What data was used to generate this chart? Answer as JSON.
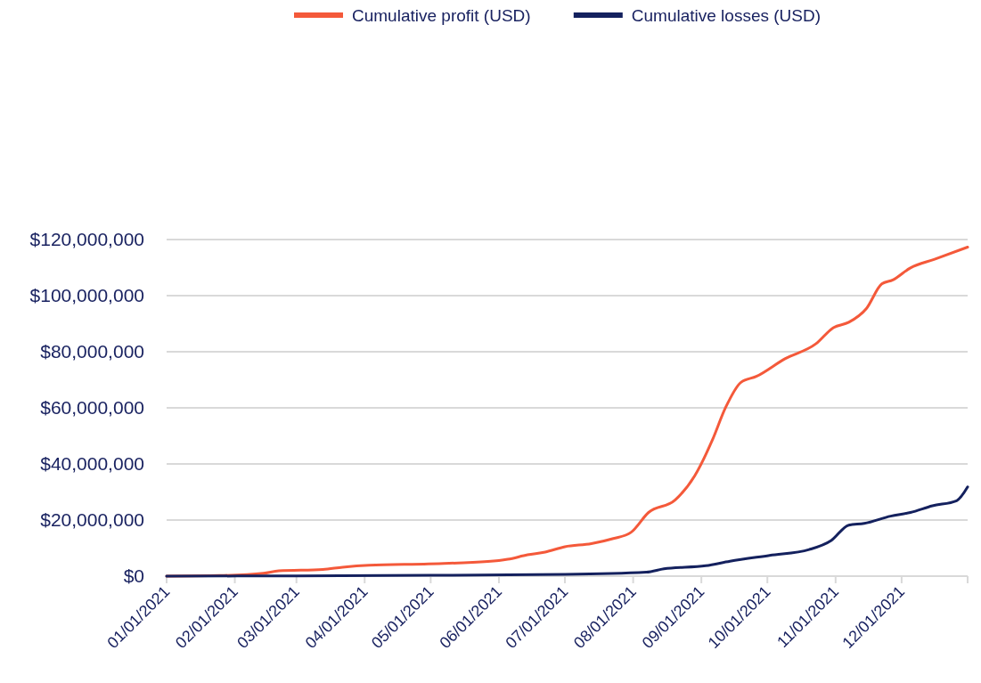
{
  "chart_data": {
    "type": "line",
    "grid": "y",
    "legend": "top",
    "xlim": [
      "2021-01-01",
      "2021-12-31"
    ],
    "xticks": [
      {
        "value": "2021-01-01",
        "label": "01/01/2021"
      },
      {
        "value": "2021-02-01",
        "label": "02/01/2021"
      },
      {
        "value": "2021-03-01",
        "label": "03/01/2021"
      },
      {
        "value": "2021-04-01",
        "label": "04/01/2021"
      },
      {
        "value": "2021-05-01",
        "label": "05/01/2021"
      },
      {
        "value": "2021-06-01",
        "label": "06/01/2021"
      },
      {
        "value": "2021-07-01",
        "label": "07/01/2021"
      },
      {
        "value": "2021-08-01",
        "label": "08/01/2021"
      },
      {
        "value": "2021-09-01",
        "label": "09/01/2021"
      },
      {
        "value": "2021-10-01",
        "label": "10/01/2021"
      },
      {
        "value": "2021-11-01",
        "label": "11/01/2021"
      },
      {
        "value": "2021-12-01",
        "label": "12/01/2021"
      },
      {
        "value": "2021-12-31",
        "label": null
      }
    ],
    "ylim": [
      0,
      120000000
    ],
    "yticks": [
      {
        "value": 0,
        "label": "$0"
      },
      {
        "value": 20000000,
        "label": "$20,000,000"
      },
      {
        "value": 40000000,
        "label": "$40,000,000"
      },
      {
        "value": 60000000,
        "label": "$60,000,000"
      },
      {
        "value": 80000000,
        "label": "$80,000,000"
      },
      {
        "value": 100000000,
        "label": "$100,000,000"
      },
      {
        "value": 120000000,
        "label": "$120,000,000"
      }
    ],
    "series": [
      {
        "name": "Cumulative profit (USD)",
        "color": "#f4593a",
        "x": [
          "2021-01-01",
          "2021-01-25",
          "2021-02-14",
          "2021-02-21",
          "2021-03-13",
          "2021-03-22",
          "2021-04-03",
          "2021-04-30",
          "2021-05-27",
          "2021-06-05",
          "2021-06-14",
          "2021-06-22",
          "2021-07-01",
          "2021-07-13",
          "2021-07-23",
          "2021-07-31",
          "2021-08-08",
          "2021-08-20",
          "2021-08-29",
          "2021-09-06",
          "2021-09-12",
          "2021-09-19",
          "2021-09-26",
          "2021-10-09",
          "2021-10-23",
          "2021-10-31",
          "2021-11-07",
          "2021-11-15",
          "2021-11-22",
          "2021-11-27",
          "2021-12-05",
          "2021-12-16",
          "2021-12-31"
        ],
        "values": [
          0,
          200000,
          1000000,
          1900000,
          2400000,
          3200000,
          3900000,
          4400000,
          5200000,
          6000000,
          7600000,
          8600000,
          10500000,
          11600000,
          13400000,
          15600000,
          22700000,
          27100000,
          35800000,
          48500000,
          60100000,
          69100000,
          71200000,
          77500000,
          82800000,
          88600000,
          90500000,
          95400000,
          104200000,
          105600000,
          109900000,
          113000000,
          117300000
        ]
      },
      {
        "name": "Cumulative losses (USD)",
        "color": "#14215e",
        "x": [
          "2021-01-01",
          "2021-03-01",
          "2021-05-01",
          "2021-07-01",
          "2021-08-07",
          "2021-08-15",
          "2021-09-03",
          "2021-09-14",
          "2021-10-02",
          "2021-10-20",
          "2021-10-30",
          "2021-11-07",
          "2021-11-14",
          "2021-11-26",
          "2021-12-05",
          "2021-12-15",
          "2021-12-26",
          "2021-12-31"
        ],
        "values": [
          0,
          100000,
          300000,
          600000,
          1400000,
          2600000,
          3700000,
          5300000,
          7400000,
          9500000,
          12700000,
          18200000,
          18800000,
          21400000,
          22700000,
          25100000,
          26900000,
          31800000
        ]
      }
    ]
  }
}
